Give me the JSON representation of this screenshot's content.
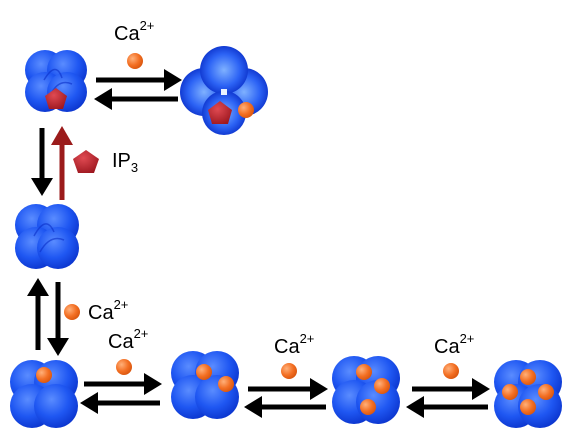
{
  "ion_label": {
    "base": "Ca",
    "charge": "2+"
  },
  "ligand_label": {
    "base": "IP",
    "subscript": "3"
  },
  "colors": {
    "subunit": "#1f57f2",
    "subunit_highlight": "#4f86ff",
    "subunit_dark": "#0a2fc8",
    "calcium": "#f36f23",
    "ip3": "#c0212b",
    "arrow": "#000000",
    "activation_arrow": "#9b1b1b",
    "background": "#ffffff"
  },
  "states": [
    {
      "id": "r0-ip3-open",
      "bound_ca": 0,
      "bound_ip3": true,
      "conformation": "closed"
    },
    {
      "id": "r0-ip3-ca-open",
      "bound_ca": 1,
      "bound_ip3": true,
      "conformation": "open"
    },
    {
      "id": "r0-free",
      "bound_ca": 0,
      "bound_ip3": false,
      "conformation": "closed"
    },
    {
      "id": "ca1",
      "bound_ca": 1,
      "bound_ip3": false,
      "conformation": "closed"
    },
    {
      "id": "ca2",
      "bound_ca": 2,
      "bound_ip3": false,
      "conformation": "closed"
    },
    {
      "id": "ca3",
      "bound_ca": 3,
      "bound_ip3": false,
      "conformation": "closed"
    },
    {
      "id": "ca4",
      "bound_ca": 4,
      "bound_ip3": false,
      "conformation": "closed"
    }
  ]
}
